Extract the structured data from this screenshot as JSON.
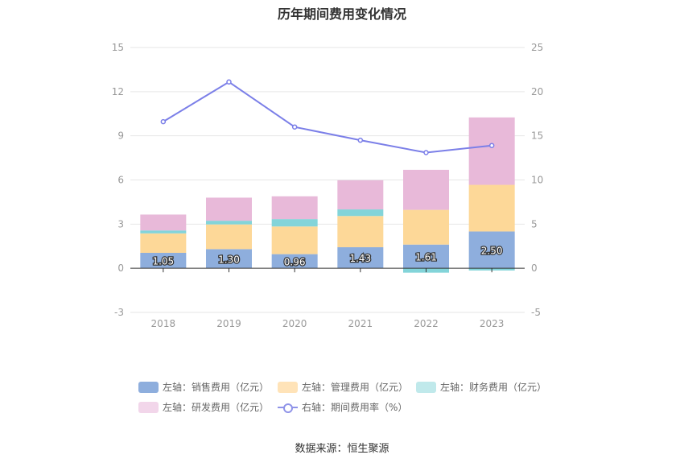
{
  "chart_data": {
    "type": "bar",
    "title": "历年期间费用变化情况",
    "categories": [
      "2018",
      "2019",
      "2020",
      "2021",
      "2022",
      "2023"
    ],
    "left_axis": {
      "ylim": [
        -3,
        15
      ],
      "ticks": [
        -3,
        0,
        3,
        6,
        9,
        12,
        15
      ]
    },
    "right_axis": {
      "ylim": [
        -5,
        25
      ],
      "ticks": [
        -5,
        0,
        5,
        10,
        15,
        20,
        25
      ]
    },
    "series": [
      {
        "name": "左轴：销售费用（亿元）",
        "axis": "left",
        "type": "bar",
        "color": "#8eaedd",
        "values": [
          1.05,
          1.3,
          0.96,
          1.43,
          1.61,
          2.5
        ]
      },
      {
        "name": "左轴：管理费用（亿元）",
        "axis": "left",
        "type": "bar",
        "color": "#fdd898",
        "values": [
          1.32,
          1.68,
          1.88,
          2.12,
          2.36,
          3.17
        ]
      },
      {
        "name": "左轴：财务费用（亿元）",
        "axis": "left",
        "type": "bar",
        "color": "#83d4d9",
        "values": [
          0.2,
          0.25,
          0.5,
          0.45,
          -0.3,
          -0.15
        ]
      },
      {
        "name": "左轴：研发费用（亿元）",
        "axis": "left",
        "type": "bar",
        "color": "#e8b9d9",
        "values": [
          1.08,
          1.57,
          1.55,
          1.98,
          2.72,
          4.58
        ]
      },
      {
        "name": "右轴：期间费用率（%）",
        "axis": "right",
        "type": "line",
        "color": "#7b7fe8",
        "values": [
          16.6,
          21.1,
          16.0,
          14.5,
          13.1,
          13.9
        ]
      }
    ],
    "bar_labels": [
      "1.05",
      "1.30",
      "0.96",
      "1.43",
      "1.61",
      "2.50"
    ],
    "grid": true,
    "legend_position": "bottom"
  },
  "legend": [
    {
      "label": "左轴：销售费用（亿元）",
      "color": "#8eaedd"
    },
    {
      "label": "左轴：管理费用（亿元）",
      "color": "#ffe3b8"
    },
    {
      "label": "左轴：财务费用（亿元）",
      "color": "#c0e9eb"
    },
    {
      "label": "左轴：研发费用（亿元）",
      "color": "#f2d6ea"
    },
    {
      "label": "右轴：期间费用率（%）",
      "color": "#8f93e8"
    }
  ],
  "source": "数据来源：恒生聚源"
}
